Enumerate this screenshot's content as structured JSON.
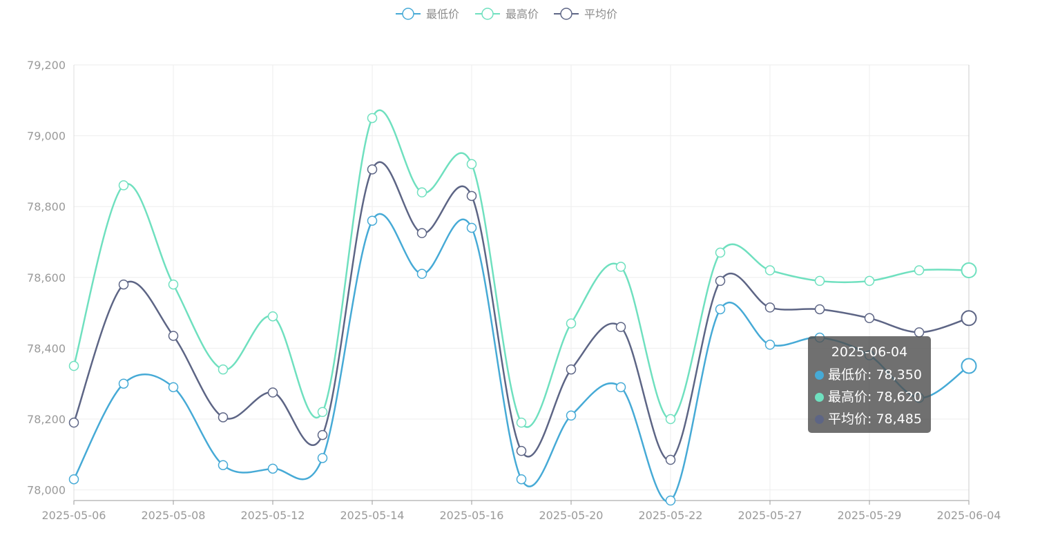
{
  "chart_data": {
    "type": "line",
    "smooth": true,
    "categories": [
      "2025-05-06",
      "2025-05-07",
      "2025-05-08",
      "2025-05-09",
      "2025-05-12",
      "2025-05-13",
      "2025-05-14",
      "2025-05-15",
      "2025-05-16",
      "2025-05-19",
      "2025-05-20",
      "2025-05-21",
      "2025-05-22",
      "2025-05-23",
      "2025-05-27",
      "2025-05-28",
      "2025-05-29",
      "2025-05-30",
      "2025-06-04"
    ],
    "x_tick_labels": [
      "2025-05-06",
      "2025-05-08",
      "2025-05-12",
      "2025-05-14",
      "2025-05-16",
      "2025-05-20",
      "2025-05-22",
      "2025-05-27",
      "2025-05-29",
      "2025-06-04"
    ],
    "series": [
      {
        "name": "最低价",
        "color": "#46aad6",
        "values": [
          78030,
          78300,
          78290,
          78070,
          78060,
          78090,
          78760,
          78610,
          78740,
          78030,
          78210,
          78290,
          77970,
          78510,
          78410,
          78430,
          78380,
          78260,
          78350
        ]
      },
      {
        "name": "最高价",
        "color": "#6fe0bf",
        "values": [
          78350,
          78860,
          78580,
          78340,
          78490,
          78220,
          79050,
          78840,
          78920,
          78190,
          78470,
          78630,
          78200,
          78670,
          78620,
          78590,
          78590,
          78620,
          78620
        ]
      },
      {
        "name": "平均价",
        "color": "#5d6585",
        "values": [
          78190,
          78580,
          78435,
          78205,
          78275,
          78155,
          78905,
          78725,
          78830,
          78110,
          78340,
          78460,
          78085,
          78590,
          78515,
          78510,
          78485,
          78445,
          78485
        ]
      }
    ],
    "y_ticks": [
      78000,
      78200,
      78400,
      78600,
      78800,
      79000,
      79200
    ],
    "y_tick_labels": [
      "78,000",
      "78,200",
      "78,400",
      "78,600",
      "78,800",
      "79,000",
      "79,200"
    ],
    "ylim": [
      77970,
      79200
    ],
    "grid": true,
    "legend_position": "top-center",
    "tooltip": {
      "title": "2025-06-04",
      "rows": [
        {
          "label": "最低价: 78,350",
          "color": "#46aad6"
        },
        {
          "label": "最高价: 78,620",
          "color": "#6fe0bf"
        },
        {
          "label": "平均价: 78,485",
          "color": "#5d6585"
        }
      ]
    }
  }
}
